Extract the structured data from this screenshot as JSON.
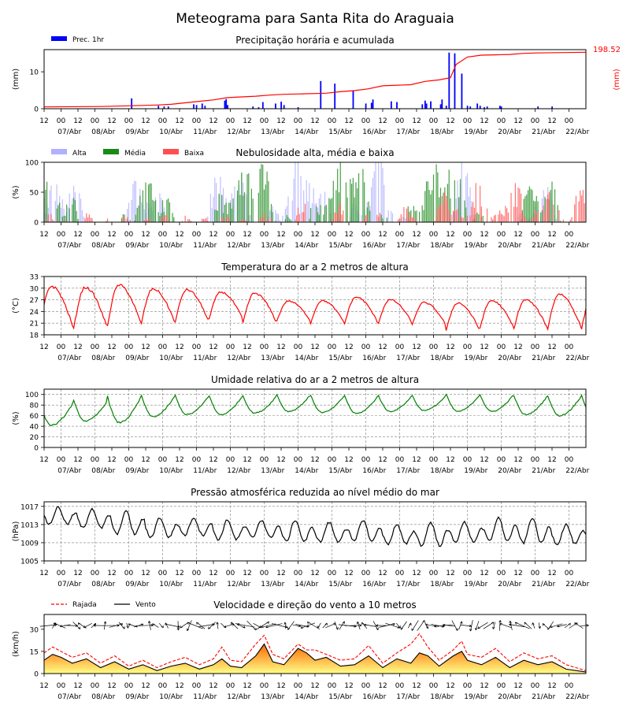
{
  "title": "Meteograma para Santa Rita do Araguaia",
  "colors": {
    "precip_bar": "#0000ff",
    "accum_line": "#ff0000",
    "alta": "#b0b0ff",
    "media": "#1a8a1a",
    "baixa": "#ff5050",
    "temp": "#ff0000",
    "rh": "#008000",
    "pres": "#000000",
    "gust": "#ff0000",
    "wind": "#000000",
    "fill_top": "#ff6600",
    "fill_bottom": "#ffff88"
  },
  "time_axis": {
    "hour_ticks": [
      "12",
      "00",
      "12",
      "00",
      "12",
      "00",
      "12",
      "00",
      "12",
      "00",
      "12",
      "00",
      "12",
      "00",
      "12",
      "00",
      "12",
      "00",
      "12",
      "00",
      "12",
      "00",
      "12",
      "00",
      "12",
      "00",
      "12",
      "00",
      "12",
      "00",
      "12",
      "00"
    ],
    "date_labels": [
      "07/Abr",
      "08/Abr",
      "09/Abr",
      "10/Abr",
      "11/Abr",
      "12/Abr",
      "13/Abr",
      "14/Abr",
      "15/Abr",
      "16/Abr",
      "17/Abr",
      "18/Abr",
      "19/Abr",
      "20/Abr",
      "21/Abr",
      "22/Abr"
    ],
    "duration_hours": 384
  },
  "chart_data": [
    {
      "type": "bar",
      "title": "Precipitação horária e acumulada",
      "ylabel": "(mm)",
      "ylabel_right": "(mm)",
      "ylim": [
        0,
        16
      ],
      "yticks": [
        0,
        10
      ],
      "legend": [
        "Prec. 1hr"
      ],
      "accum_total_label": "198.52",
      "series": [
        {
          "name": "Prec. 1hr",
          "hours": [
            62,
            81,
            85,
            88,
            106,
            108,
            112,
            114,
            128,
            129,
            130,
            148,
            152,
            155,
            164,
            168,
            170,
            180,
            196,
            206,
            219,
            228,
            232,
            233,
            246,
            250,
            268,
            270,
            271,
            274,
            281,
            282,
            285,
            287,
            291,
            296,
            300,
            302,
            307,
            309,
            312,
            314,
            323,
            324,
            350,
            360
          ],
          "values": [
            2.8,
            0.8,
            0.6,
            0.6,
            1.2,
            1.0,
            1.4,
            0.8,
            2.2,
            2.6,
            1.0,
            0.6,
            0.4,
            1.8,
            1.4,
            1.9,
            1.0,
            0.4,
            7.5,
            6.8,
            5.0,
            1.4,
            1.6,
            2.5,
            2.0,
            1.8,
            1.2,
            2.2,
            1.4,
            2.0,
            1.2,
            2.5,
            0.8,
            15.2,
            15.0,
            9.5,
            0.8,
            0.6,
            1.4,
            0.8,
            0.4,
            0.6,
            0.8,
            0.6,
            0.6,
            0.6
          ]
        },
        {
          "name": "accumulated",
          "hours": [
            0,
            40,
            60,
            80,
            90,
            100,
            110,
            120,
            130,
            140,
            150,
            160,
            170,
            180,
            200,
            210,
            220,
            230,
            240,
            260,
            270,
            280,
            288,
            292,
            300,
            310,
            320,
            330,
            340,
            350,
            384
          ],
          "values": [
            0.5,
            0.6,
            0.8,
            1.0,
            1.2,
            1.6,
            2.0,
            2.4,
            3.0,
            3.2,
            3.4,
            3.7,
            3.9,
            4.0,
            4.2,
            4.6,
            4.9,
            5.4,
            6.2,
            6.5,
            7.4,
            7.8,
            8.4,
            12.0,
            14.0,
            14.5,
            14.6,
            14.7,
            15.0,
            15.1,
            15.3
          ]
        }
      ]
    },
    {
      "type": "bar",
      "title": "Nebulosidade alta, média e baixa",
      "ylabel": "(%)",
      "ylim": [
        0,
        100
      ],
      "yticks": [
        0,
        50,
        100
      ],
      "series": [
        {
          "name": "Alta"
        },
        {
          "name": "Média"
        },
        {
          "name": "Baixa"
        }
      ]
    },
    {
      "type": "line",
      "title": "Temperatura do ar a 2 metros de altura",
      "ylabel": "(°C)",
      "ylim": [
        18,
        33
      ],
      "yticks": [
        18,
        21,
        24,
        27,
        30,
        33
      ],
      "day_max": [
        30.5,
        30.2,
        30.8,
        29.8,
        29.6,
        29.0,
        28.7,
        26.7,
        26.8,
        27.7,
        27.0,
        26.3,
        26.2,
        26.8,
        27.0,
        28.5
      ],
      "day_min": [
        19.4,
        19.5,
        20.5,
        21.0,
        21.2,
        22.0,
        21.0,
        21.5,
        21.0,
        20.8,
        21.0,
        20.5,
        19.0,
        19.8,
        19.5,
        19.6
      ]
    },
    {
      "type": "line",
      "title": "Umidade relativa do ar a 2 metros de altura",
      "ylabel": "(%)",
      "ylim": [
        0,
        110
      ],
      "yticks": [
        0,
        20,
        40,
        60,
        80,
        100
      ],
      "day_max": [
        86,
        88,
        96,
        98,
        98,
        98,
        98,
        100,
        98,
        98,
        98,
        98,
        100,
        100,
        98,
        98
      ],
      "day_min": [
        42,
        50,
        47,
        58,
        62,
        62,
        65,
        68,
        66,
        64,
        68,
        70,
        68,
        68,
        62,
        60
      ]
    },
    {
      "type": "line",
      "title": "Pressão atmosférica reduzida ao nível médio do mar",
      "ylabel": "(hPa)",
      "ylim": [
        1005,
        1018
      ],
      "yticks": [
        1005,
        1009,
        1013,
        1017
      ],
      "day_max": [
        1016.8,
        1016.5,
        1016.0,
        1014.5,
        1014.5,
        1014.0,
        1014.0,
        1014.0,
        1013.5,
        1014.0,
        1013.0,
        1013.5,
        1013.5,
        1014.5,
        1014.5,
        1013.0
      ],
      "day_min": [
        1012.5,
        1011.5,
        1010.0,
        1009.5,
        1010.0,
        1009.0,
        1009.5,
        1008.5,
        1008.5,
        1008.5,
        1008.0,
        1007.5,
        1008.5,
        1008.5,
        1008.0,
        1008.0
      ]
    },
    {
      "type": "line",
      "title": "Velocidade e direção do vento a 10 metros",
      "ylabel": "(km/h)",
      "ylim": [
        0,
        40
      ],
      "yticks": [
        0,
        15,
        30
      ],
      "legend": [
        "Rajada",
        "Vento"
      ],
      "series": [
        {
          "name": "Vento",
          "hours": [
            0,
            6,
            12,
            20,
            30,
            40,
            50,
            60,
            70,
            80,
            90,
            100,
            110,
            120,
            126,
            132,
            140,
            150,
            156,
            162,
            170,
            180,
            186,
            192,
            200,
            210,
            220,
            230,
            240,
            250,
            260,
            266,
            272,
            280,
            290,
            296,
            300,
            310,
            320,
            330,
            340,
            350,
            360,
            370,
            384
          ],
          "values": [
            9,
            13,
            11,
            7,
            10,
            4,
            8,
            3,
            6,
            2,
            5,
            7,
            3,
            6,
            10,
            5,
            4,
            12,
            20,
            8,
            6,
            17,
            14,
            9,
            11,
            5,
            6,
            12,
            4,
            10,
            7,
            14,
            12,
            5,
            12,
            15,
            9,
            6,
            11,
            4,
            9,
            6,
            8,
            3,
            1
          ]
        },
        {
          "name": "Rajada",
          "hours": [
            0,
            6,
            12,
            20,
            30,
            40,
            50,
            60,
            70,
            80,
            90,
            100,
            110,
            120,
            126,
            132,
            140,
            150,
            156,
            162,
            170,
            180,
            186,
            192,
            200,
            210,
            220,
            230,
            240,
            250,
            260,
            266,
            272,
            280,
            290,
            296,
            300,
            310,
            320,
            330,
            340,
            350,
            360,
            370,
            384
          ],
          "values": [
            14,
            18,
            15,
            11,
            14,
            7,
            12,
            5,
            9,
            4,
            8,
            11,
            6,
            10,
            18,
            9,
            8,
            20,
            26,
            13,
            10,
            20,
            16,
            16,
            13,
            9,
            10,
            19,
            7,
            14,
            20,
            27,
            18,
            9,
            16,
            22,
            13,
            11,
            17,
            8,
            14,
            10,
            12,
            6,
            2
          ]
        }
      ]
    }
  ]
}
